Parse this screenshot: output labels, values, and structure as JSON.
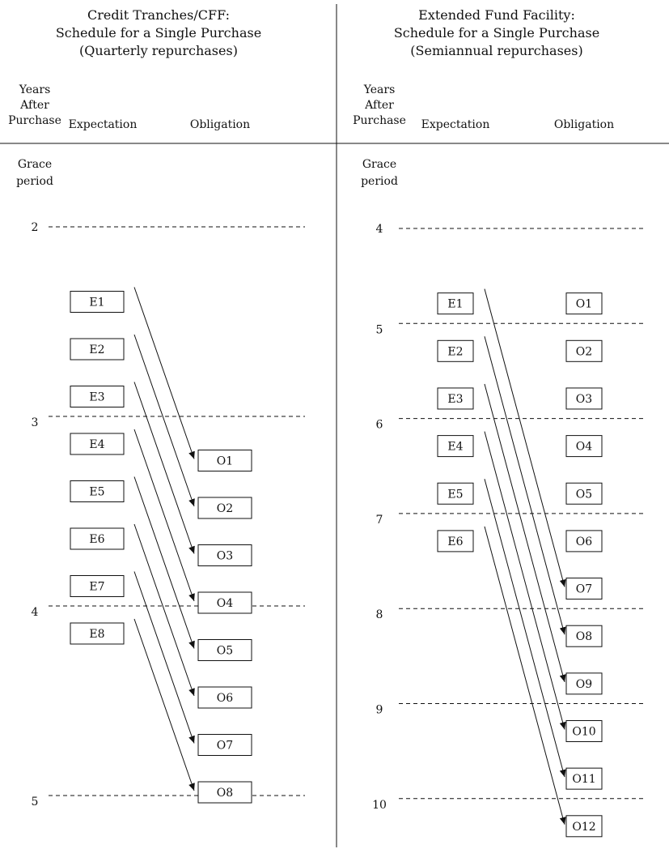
{
  "panels": [
    {
      "id": "credit",
      "title": [
        "Credit Tranches/CFF:",
        "Schedule for a Single Purchase",
        "(Quarterly repurchases)"
      ],
      "col_years": [
        "Years",
        "After",
        "Purchase"
      ],
      "col_expectation": "Expectation",
      "col_obligation": "Obligation",
      "grace": [
        "Grace",
        "period"
      ],
      "year_lines": [
        {
          "label": "2",
          "year": 2
        },
        {
          "label": "3",
          "year": 3
        },
        {
          "label": "4",
          "year": 4
        },
        {
          "label": "5",
          "year": 5
        }
      ],
      "expectations": [
        {
          "label": "E1",
          "year": 2.25
        },
        {
          "label": "E2",
          "year": 2.5
        },
        {
          "label": "E3",
          "year": 2.75
        },
        {
          "label": "E4",
          "year": 3.0
        },
        {
          "label": "E5",
          "year": 3.25
        },
        {
          "label": "E6",
          "year": 3.5
        },
        {
          "label": "E7",
          "year": 3.75
        },
        {
          "label": "E8",
          "year": 4.0
        }
      ],
      "obligations": [
        {
          "label": "O1",
          "year": 3.25
        },
        {
          "label": "O2",
          "year": 3.5
        },
        {
          "label": "O3",
          "year": 3.75
        },
        {
          "label": "O4",
          "year": 4.0
        },
        {
          "label": "O5",
          "year": 4.25
        },
        {
          "label": "O6",
          "year": 4.5
        },
        {
          "label": "O7",
          "year": 4.75
        },
        {
          "label": "O8",
          "year": 5.0
        }
      ],
      "links": [
        [
          0,
          0
        ],
        [
          1,
          1
        ],
        [
          2,
          2
        ],
        [
          3,
          3
        ],
        [
          4,
          4
        ],
        [
          5,
          5
        ],
        [
          6,
          6
        ],
        [
          7,
          7
        ]
      ]
    },
    {
      "id": "eff",
      "title": [
        "Extended Fund Facility:",
        "Schedule for a Single Purchase",
        "(Semiannual repurchases)"
      ],
      "col_years": [
        "Years",
        "After",
        "Purchase"
      ],
      "col_expectation": "Expectation",
      "col_obligation": "Obligation",
      "grace": [
        "Grace",
        "period"
      ],
      "year_lines": [
        {
          "label": "4",
          "year": 4
        },
        {
          "label": "5",
          "year": 5
        },
        {
          "label": "6",
          "year": 6
        },
        {
          "label": "7",
          "year": 7
        },
        {
          "label": "8",
          "year": 8
        },
        {
          "label": "9",
          "year": 9
        },
        {
          "label": "10",
          "year": 10
        }
      ],
      "expectations": [
        {
          "label": "E1",
          "year": 4.5
        },
        {
          "label": "E2",
          "year": 5.0
        },
        {
          "label": "E3",
          "year": 5.5
        },
        {
          "label": "E4",
          "year": 6.0
        },
        {
          "label": "E5",
          "year": 6.5
        },
        {
          "label": "E6",
          "year": 7.0
        }
      ],
      "obligations": [
        {
          "label": "O1",
          "year": 4.5
        },
        {
          "label": "O2",
          "year": 5.0
        },
        {
          "label": "O3",
          "year": 5.5
        },
        {
          "label": "O4",
          "year": 6.0
        },
        {
          "label": "O5",
          "year": 6.5
        },
        {
          "label": "O6",
          "year": 7.0
        },
        {
          "label": "O7",
          "year": 7.5
        },
        {
          "label": "O8",
          "year": 8.0
        },
        {
          "label": "O9",
          "year": 8.5
        },
        {
          "label": "O10",
          "year": 9.0
        },
        {
          "label": "O11",
          "year": 9.5
        },
        {
          "label": "O12",
          "year": 10.0
        }
      ],
      "links": [
        [
          0,
          6
        ],
        [
          1,
          7
        ],
        [
          2,
          8
        ],
        [
          3,
          9
        ],
        [
          4,
          10
        ],
        [
          5,
          11
        ]
      ]
    }
  ]
}
